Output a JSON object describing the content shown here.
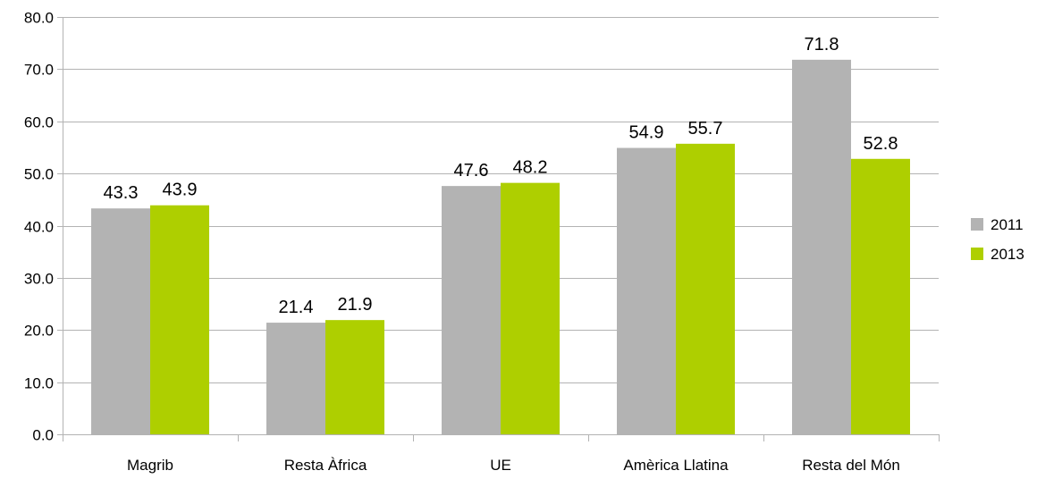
{
  "chart_data": {
    "type": "bar",
    "categories": [
      "Magrib",
      "Resta Àfrica",
      "UE",
      "Amèrica Llatina",
      "Resta del Món"
    ],
    "series": [
      {
        "name": "2011",
        "values": [
          43.3,
          21.4,
          47.6,
          54.9,
          71.8
        ],
        "color": "#b3b3b3"
      },
      {
        "name": "2013",
        "values": [
          43.9,
          21.9,
          48.2,
          55.7,
          52.8
        ],
        "color": "#aecf00"
      }
    ],
    "ylim": [
      0,
      80
    ],
    "yticks": [
      0,
      10,
      20,
      30,
      40,
      50,
      60,
      70,
      80
    ],
    "ytick_labels": [
      "0.0",
      "10.0",
      "20.0",
      "30.0",
      "40.0",
      "50.0",
      "60.0",
      "70.0",
      "80.0"
    ],
    "data_labels": [
      [
        "43.3",
        "21.4",
        "47.6",
        "54.9",
        "71.8"
      ],
      [
        "43.9",
        "21.9",
        "48.2",
        "55.7",
        "52.8"
      ]
    ],
    "grid": true,
    "gridline_color": "#b3b3b3",
    "legend_position": "right",
    "title": "",
    "xlabel": "",
    "ylabel": ""
  }
}
